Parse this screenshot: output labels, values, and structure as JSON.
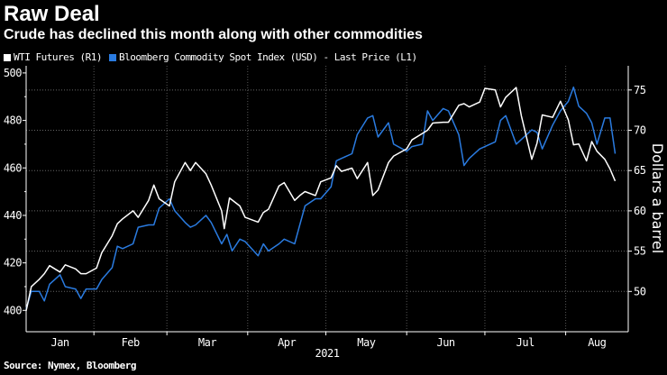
{
  "chart_data": {
    "type": "line",
    "title": "Raw Deal",
    "subtitle": "Crude has declined this month along with other commodities",
    "source": "Source: Nymex, Bloomberg",
    "xlabel": "2021",
    "x_ticks": [
      "Jan",
      "Feb",
      "Mar",
      "Apr",
      "May",
      "Jun",
      "Jul",
      "Aug"
    ],
    "xlim": [
      "2021-01-06",
      "2021-08-25"
    ],
    "left_axis": {
      "label": "",
      "ylim": [
        391,
        503
      ],
      "ticks": [
        400,
        420,
        440,
        460,
        480,
        500
      ]
    },
    "right_axis": {
      "label": "Dollars a barrel",
      "ylim": [
        45,
        78
      ],
      "ticks": [
        50,
        55,
        60,
        65,
        70,
        75
      ]
    },
    "grid": true,
    "legend_position": "top-left",
    "series": [
      {
        "name": "WTI Futures (R1)",
        "axis": "right",
        "color": "#ffffff",
        "x": [
          "2021-01-06",
          "2021-01-08",
          "2021-01-11",
          "2021-01-13",
          "2021-01-15",
          "2021-01-19",
          "2021-01-21",
          "2021-01-25",
          "2021-01-27",
          "2021-01-29",
          "2021-02-02",
          "2021-02-04",
          "2021-02-08",
          "2021-02-10",
          "2021-02-12",
          "2021-02-16",
          "2021-02-18",
          "2021-02-22",
          "2021-02-24",
          "2021-02-26",
          "2021-03-02",
          "2021-03-04",
          "2021-03-08",
          "2021-03-10",
          "2021-03-12",
          "2021-03-16",
          "2021-03-18",
          "2021-03-22",
          "2021-03-23",
          "2021-03-25",
          "2021-03-29",
          "2021-03-31",
          "2021-04-05",
          "2021-04-07",
          "2021-04-09",
          "2021-04-13",
          "2021-04-15",
          "2021-04-19",
          "2021-04-21",
          "2021-04-23",
          "2021-04-27",
          "2021-04-29",
          "2021-05-03",
          "2021-05-05",
          "2021-05-07",
          "2021-05-11",
          "2021-05-13",
          "2021-05-17",
          "2021-05-19",
          "2021-05-21",
          "2021-05-25",
          "2021-05-27",
          "2021-06-01",
          "2021-06-03",
          "2021-06-07",
          "2021-06-09",
          "2021-06-11",
          "2021-06-15",
          "2021-06-17",
          "2021-06-21",
          "2021-06-23",
          "2021-06-25",
          "2021-06-29",
          "2021-07-01",
          "2021-07-05",
          "2021-07-07",
          "2021-07-09",
          "2021-07-13",
          "2021-07-15",
          "2021-07-19",
          "2021-07-21",
          "2021-07-23",
          "2021-07-27",
          "2021-07-30",
          "2021-08-02",
          "2021-08-04",
          "2021-08-06",
          "2021-08-09",
          "2021-08-11",
          "2021-08-13",
          "2021-08-16",
          "2021-08-18",
          "2021-08-20"
        ],
        "y": [
          47.6,
          50.6,
          51.5,
          52.2,
          53.2,
          52.4,
          53.3,
          52.8,
          52.2,
          52.2,
          52.9,
          54.8,
          56.9,
          58.4,
          59.0,
          60.0,
          59.2,
          61.3,
          63.2,
          61.5,
          60.6,
          63.6,
          66.0,
          65.0,
          66.0,
          64.6,
          63.2,
          60.0,
          57.8,
          61.6,
          60.6,
          59.2,
          58.6,
          59.8,
          60.2,
          63.1,
          63.5,
          61.3,
          61.9,
          62.4,
          61.9,
          63.6,
          64.1,
          65.6,
          64.9,
          65.3,
          64.0,
          66.0,
          61.9,
          62.6,
          66.0,
          66.8,
          67.7,
          68.8,
          69.6,
          70.0,
          70.9,
          71.0,
          71.0,
          73.1,
          73.3,
          72.9,
          73.5,
          75.2,
          75.0,
          72.9,
          74.1,
          75.3,
          71.8,
          66.4,
          68.4,
          71.9,
          71.6,
          73.6,
          71.3,
          68.2,
          68.3,
          66.2,
          68.6,
          67.4,
          66.4,
          65.2,
          63.7
        ]
      },
      {
        "name": "Bloomberg Commodity Spot Index (USD) - Last Price (L1)",
        "axis": "left",
        "color": "#2a7be0",
        "x": [
          "2021-01-06",
          "2021-01-08",
          "2021-01-11",
          "2021-01-13",
          "2021-01-15",
          "2021-01-19",
          "2021-01-21",
          "2021-01-25",
          "2021-01-27",
          "2021-01-29",
          "2021-02-02",
          "2021-02-04",
          "2021-02-08",
          "2021-02-10",
          "2021-02-12",
          "2021-02-16",
          "2021-02-18",
          "2021-02-22",
          "2021-02-24",
          "2021-02-26",
          "2021-03-02",
          "2021-03-04",
          "2021-03-08",
          "2021-03-10",
          "2021-03-12",
          "2021-03-16",
          "2021-03-18",
          "2021-03-22",
          "2021-03-24",
          "2021-03-26",
          "2021-03-29",
          "2021-03-31",
          "2021-04-05",
          "2021-04-07",
          "2021-04-09",
          "2021-04-13",
          "2021-04-15",
          "2021-04-19",
          "2021-04-21",
          "2021-04-23",
          "2021-04-27",
          "2021-04-29",
          "2021-05-03",
          "2021-05-05",
          "2021-05-07",
          "2021-05-11",
          "2021-05-13",
          "2021-05-17",
          "2021-05-19",
          "2021-05-21",
          "2021-05-25",
          "2021-05-27",
          "2021-06-01",
          "2021-06-03",
          "2021-06-07",
          "2021-06-09",
          "2021-06-11",
          "2021-06-15",
          "2021-06-17",
          "2021-06-21",
          "2021-06-23",
          "2021-06-25",
          "2021-06-29",
          "2021-07-01",
          "2021-07-05",
          "2021-07-07",
          "2021-07-09",
          "2021-07-13",
          "2021-07-15",
          "2021-07-19",
          "2021-07-21",
          "2021-07-23",
          "2021-07-27",
          "2021-07-30",
          "2021-08-02",
          "2021-08-04",
          "2021-08-06",
          "2021-08-09",
          "2021-08-11",
          "2021-08-13",
          "2021-08-16",
          "2021-08-18",
          "2021-08-20"
        ],
        "y": [
          400.5,
          408,
          408,
          404,
          411,
          415,
          410,
          409,
          405,
          409,
          409,
          413,
          418,
          427,
          426,
          428,
          435,
          436,
          436,
          443,
          447,
          442,
          437,
          435,
          436,
          440,
          437,
          428,
          432,
          425,
          430,
          429,
          423,
          428,
          425,
          428,
          430,
          428,
          436,
          444,
          447,
          447,
          452,
          463,
          464,
          466,
          474,
          481,
          482,
          473,
          479,
          470,
          467,
          469,
          470,
          484,
          480,
          485,
          484,
          474,
          461,
          464,
          468,
          469,
          471,
          480,
          482,
          470,
          472,
          476,
          475,
          468,
          478,
          484,
          488,
          494,
          486,
          483,
          479,
          470,
          481,
          481,
          466
        ]
      }
    ]
  }
}
